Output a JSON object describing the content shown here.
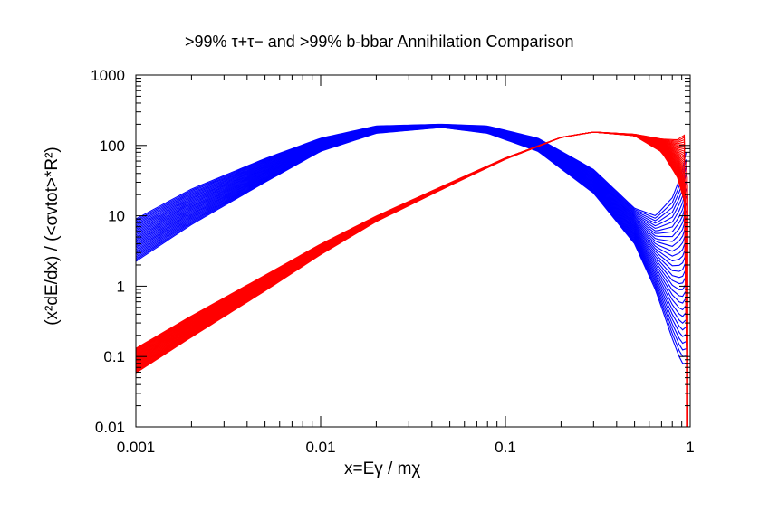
{
  "chart_data": {
    "type": "line",
    "title": ">99% τ+τ− and >99% b-bbar Annihilation Comparison",
    "xlabel": "x=Eγ / mχ",
    "ylabel": "(x²dE/dx) / (<σvtot>*R²)",
    "x_scale": "log",
    "y_scale": "log",
    "xlim": [
      0.001,
      1
    ],
    "ylim": [
      0.01,
      1000
    ],
    "x_ticks": [
      "0.001",
      "0.01",
      "0.1",
      "1"
    ],
    "y_ticks": [
      "0.01",
      "0.1",
      "1",
      "10",
      "100",
      "1000"
    ],
    "grid": false,
    "legend": "none",
    "series": [
      {
        "color": "#0000ff",
        "bundle_size": 30,
        "x": [
          0.001,
          0.002,
          0.005,
          0.01,
          0.02,
          0.045,
          0.08,
          0.15,
          0.3,
          0.5,
          0.65,
          0.8,
          0.9,
          0.95
        ],
        "y": [
          5,
          15,
          50,
          110,
          175,
          200,
          175,
          110,
          35,
          8,
          2.5,
          1.2,
          0.8,
          0.4
        ],
        "y_spread_low": [
          0.45,
          0.5,
          0.6,
          0.75,
          0.85,
          0.9,
          0.85,
          0.75,
          0.6,
          0.5,
          0.35,
          0.15,
          0.1,
          0.2
        ],
        "y_spread_high": [
          1.8,
          1.6,
          1.3,
          1.15,
          1.08,
          1.0,
          1.08,
          1.15,
          1.3,
          1.6,
          4.0,
          15,
          50,
          200
        ]
      },
      {
        "color": "#ff0000",
        "bundle_size": 30,
        "x": [
          0.001,
          0.002,
          0.005,
          0.01,
          0.02,
          0.05,
          0.1,
          0.2,
          0.3,
          0.5,
          0.7,
          0.85,
          0.93,
          0.96,
          0.97
        ],
        "y": [
          0.09,
          0.27,
          1.1,
          3.3,
          9,
          28,
          65,
          130,
          155,
          140,
          95,
          60,
          40,
          20,
          0.01
        ],
        "y_spread_low": [
          0.65,
          0.7,
          0.78,
          0.85,
          0.92,
          0.96,
          0.98,
          1.0,
          1.0,
          0.98,
          0.85,
          0.6,
          0.4,
          0.2,
          1.0
        ],
        "y_spread_high": [
          1.45,
          1.4,
          1.3,
          1.2,
          1.1,
          1.05,
          1.02,
          1.0,
          1.0,
          1.03,
          1.3,
          2.0,
          3.5,
          8,
          1.0
        ]
      }
    ]
  }
}
